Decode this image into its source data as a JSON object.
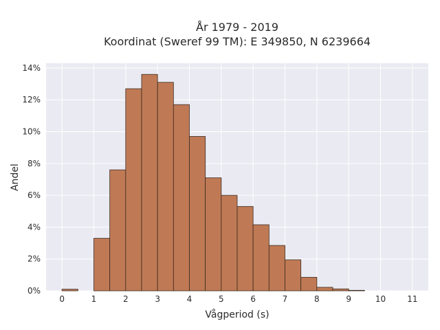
{
  "chart_data": {
    "type": "bar",
    "title_line1": "År 1979 - 2019",
    "title_line2": "Koordinat (Sweref 99 TM): E 349850, N 6239664",
    "xlabel": "Vågperiod (s)",
    "ylabel": "Andel",
    "bin_width": 0.5,
    "bins": [
      {
        "x0": 0.0,
        "value": 0.1
      },
      {
        "x0": 0.5,
        "value": 0.0
      },
      {
        "x0": 1.0,
        "value": 3.3
      },
      {
        "x0": 1.5,
        "value": 7.6
      },
      {
        "x0": 2.0,
        "value": 12.7
      },
      {
        "x0": 2.5,
        "value": 13.6
      },
      {
        "x0": 3.0,
        "value": 13.1
      },
      {
        "x0": 3.5,
        "value": 11.7
      },
      {
        "x0": 4.0,
        "value": 9.7
      },
      {
        "x0": 4.5,
        "value": 7.1
      },
      {
        "x0": 5.0,
        "value": 6.0
      },
      {
        "x0": 5.5,
        "value": 5.3
      },
      {
        "x0": 6.0,
        "value": 4.15
      },
      {
        "x0": 6.5,
        "value": 2.85
      },
      {
        "x0": 7.0,
        "value": 1.95
      },
      {
        "x0": 7.5,
        "value": 0.85
      },
      {
        "x0": 8.0,
        "value": 0.22
      },
      {
        "x0": 8.5,
        "value": 0.12
      },
      {
        "x0": 9.0,
        "value": 0.03
      }
    ],
    "xlim": [
      -0.5,
      11.5
    ],
    "ylim": [
      0,
      14.3
    ],
    "xticks": [
      0,
      1,
      2,
      3,
      4,
      5,
      6,
      7,
      8,
      9,
      10,
      11
    ],
    "yticks": [
      0,
      2,
      4,
      6,
      8,
      10,
      12,
      14
    ],
    "ytick_labels": [
      "0%",
      "2%",
      "4%",
      "6%",
      "8%",
      "10%",
      "12%",
      "14%"
    ],
    "grid": true,
    "legend": false,
    "bar_color": "#bf7a55",
    "bar_edge_color": "#3a2a20",
    "background_color": "#eaeaf2",
    "grid_color": "#ffffff"
  }
}
